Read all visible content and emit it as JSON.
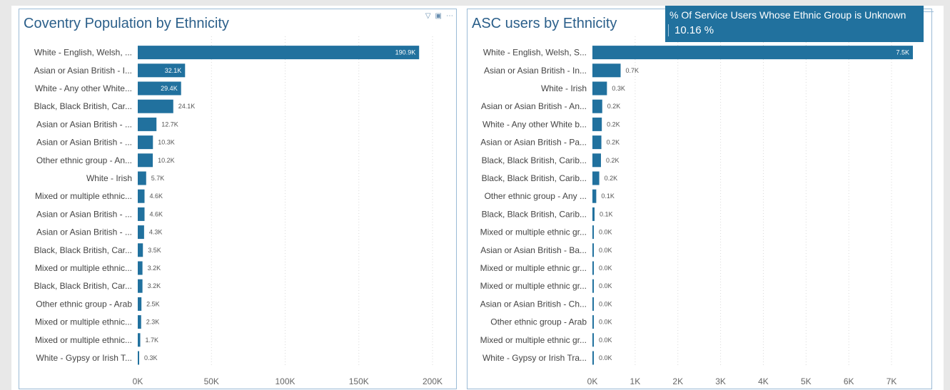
{
  "page": {
    "accent_color": "#21719e",
    "panel_border_color": "#9bbbd6",
    "title_color": "#2b5f8a"
  },
  "left_panel": {
    "title": "Coventry Population by Ethnicity",
    "icons": [
      "filter-icon",
      "focus-mode-icon",
      "more-options-icon"
    ]
  },
  "right_panel": {
    "title": "ASC users by Ethnicity"
  },
  "kpi": {
    "label": "% Of Service Users Whose Ethnic Group is Unknown",
    "value": "10.16 %"
  },
  "chart_data": [
    {
      "type": "bar",
      "orientation": "horizontal",
      "title": "Coventry Population by Ethnicity",
      "categories": [
        "White - English, Welsh, ...",
        "Asian or Asian British - I...",
        "White - Any other White...",
        "Black, Black British, Car...",
        "Asian or Asian British - ...",
        "Asian or Asian British - ...",
        "Other ethnic group - An...",
        "White - Irish",
        "Mixed or multiple ethnic...",
        "Asian or Asian British - ...",
        "Asian or Asian British - ...",
        "Black, Black British, Car...",
        "Mixed or multiple ethnic...",
        "Black, Black British, Car...",
        "Other ethnic group - Arab",
        "Mixed or multiple ethnic...",
        "Mixed or multiple ethnic...",
        "White - Gypsy or Irish T..."
      ],
      "values": [
        190900,
        32100,
        29400,
        24100,
        12700,
        10300,
        10200,
        5700,
        4600,
        4600,
        4300,
        3500,
        3200,
        3200,
        2500,
        2300,
        1700,
        300
      ],
      "data_labels": [
        "190.9K",
        "32.1K",
        "29.4K",
        "24.1K",
        "12.7K",
        "10.3K",
        "10.2K",
        "5.7K",
        "4.6K",
        "4.6K",
        "4.3K",
        "3.5K",
        "3.2K",
        "3.2K",
        "2.5K",
        "2.3K",
        "1.7K",
        "0.3K"
      ],
      "x_ticks": [
        0,
        50000,
        100000,
        150000,
        200000
      ],
      "x_tick_labels": [
        "0K",
        "50K",
        "100K",
        "150K",
        "200K"
      ],
      "xlim": [
        0,
        200000
      ],
      "grid": "vertical-dotted",
      "color": "#21719e"
    },
    {
      "type": "bar",
      "orientation": "horizontal",
      "title": "ASC users by Ethnicity",
      "categories": [
        "White - English, Welsh, S...",
        "Asian or Asian British - In...",
        "White - Irish",
        "Asian or Asian British - An...",
        "White - Any other White b...",
        "Asian or Asian British - Pa...",
        "Black, Black British, Carib...",
        "Black, Black British, Carib...",
        "Other ethnic group - Any ...",
        "Black, Black British, Carib...",
        "Mixed or multiple ethnic gr...",
        "Asian or Asian British - Ba...",
        "Mixed or multiple ethnic gr...",
        "Mixed or multiple ethnic gr...",
        "Asian or Asian British - Ch...",
        "Other ethnic group - Arab",
        "Mixed or multiple ethnic gr...",
        "White - Gypsy or Irish Tra..."
      ],
      "values": [
        7500,
        660,
        340,
        230,
        220,
        210,
        200,
        160,
        90,
        50,
        30,
        25,
        20,
        18,
        15,
        12,
        10,
        5
      ],
      "data_labels": [
        "7.5K",
        "0.7K",
        "0.3K",
        "0.2K",
        "0.2K",
        "0.2K",
        "0.2K",
        "0.2K",
        "0.1K",
        "0.1K",
        "0.0K",
        "0.0K",
        "0.0K",
        "0.0K",
        "0.0K",
        "0.0K",
        "0.0K",
        "0.0K"
      ],
      "x_ticks": [
        0,
        1000,
        2000,
        3000,
        4000,
        5000,
        6000,
        7000
      ],
      "x_tick_labels": [
        "0K",
        "1K",
        "2K",
        "3K",
        "4K",
        "5K",
        "6K",
        "7K"
      ],
      "xlim": [
        0,
        7600
      ],
      "grid": "vertical-dotted",
      "color": "#21719e"
    }
  ]
}
